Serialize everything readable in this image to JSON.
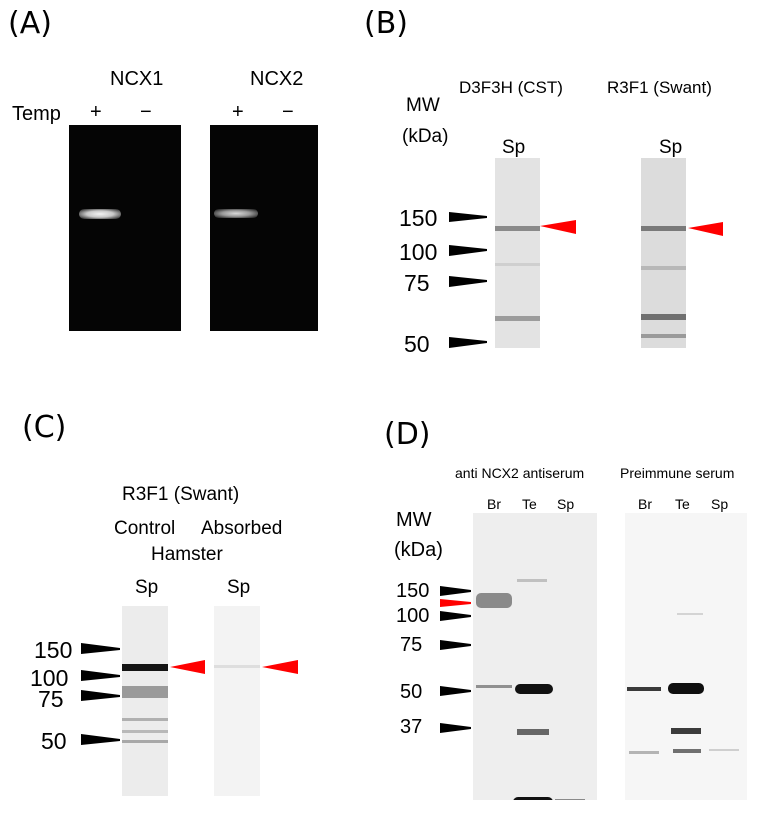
{
  "panels": {
    "A": {
      "label": "(A)",
      "gene_labels": [
        "NCX1",
        "NCX2"
      ],
      "template_label": "Temp",
      "lane_signs": [
        "+",
        "−",
        "+",
        "−"
      ]
    },
    "B": {
      "label": "(B)",
      "mw_label": "MW",
      "kda_label": "(kDa)",
      "antibodies": [
        "D3F3H (CST)",
        "R3F1 (Swant)"
      ],
      "lane_labels": [
        "Sp",
        "Sp"
      ],
      "markers": [
        "150",
        "100",
        "75",
        "50"
      ]
    },
    "C": {
      "label": "(C)",
      "antibody": "R3F1 (Swant)",
      "conditions": [
        "Control",
        "Absorbed"
      ],
      "species": "Hamster",
      "lane_labels": [
        "Sp",
        "Sp"
      ],
      "markers": [
        "150",
        "100",
        "75",
        "50"
      ]
    },
    "D": {
      "label": "(D)",
      "sera": [
        "anti NCX2 antiserum",
        "Preimmune serum"
      ],
      "mw_label": "MW",
      "kda_label": "(kDa)",
      "lane_labels_left": [
        "Br",
        "Te",
        "Sp"
      ],
      "lane_labels_right": [
        "Br",
        "Te",
        "Sp"
      ],
      "markers": [
        "150",
        "100",
        "75",
        "50",
        "37"
      ]
    }
  },
  "colors": {
    "arrowhead": "#ff0000",
    "marker": "#000000",
    "gel": "#050505"
  }
}
